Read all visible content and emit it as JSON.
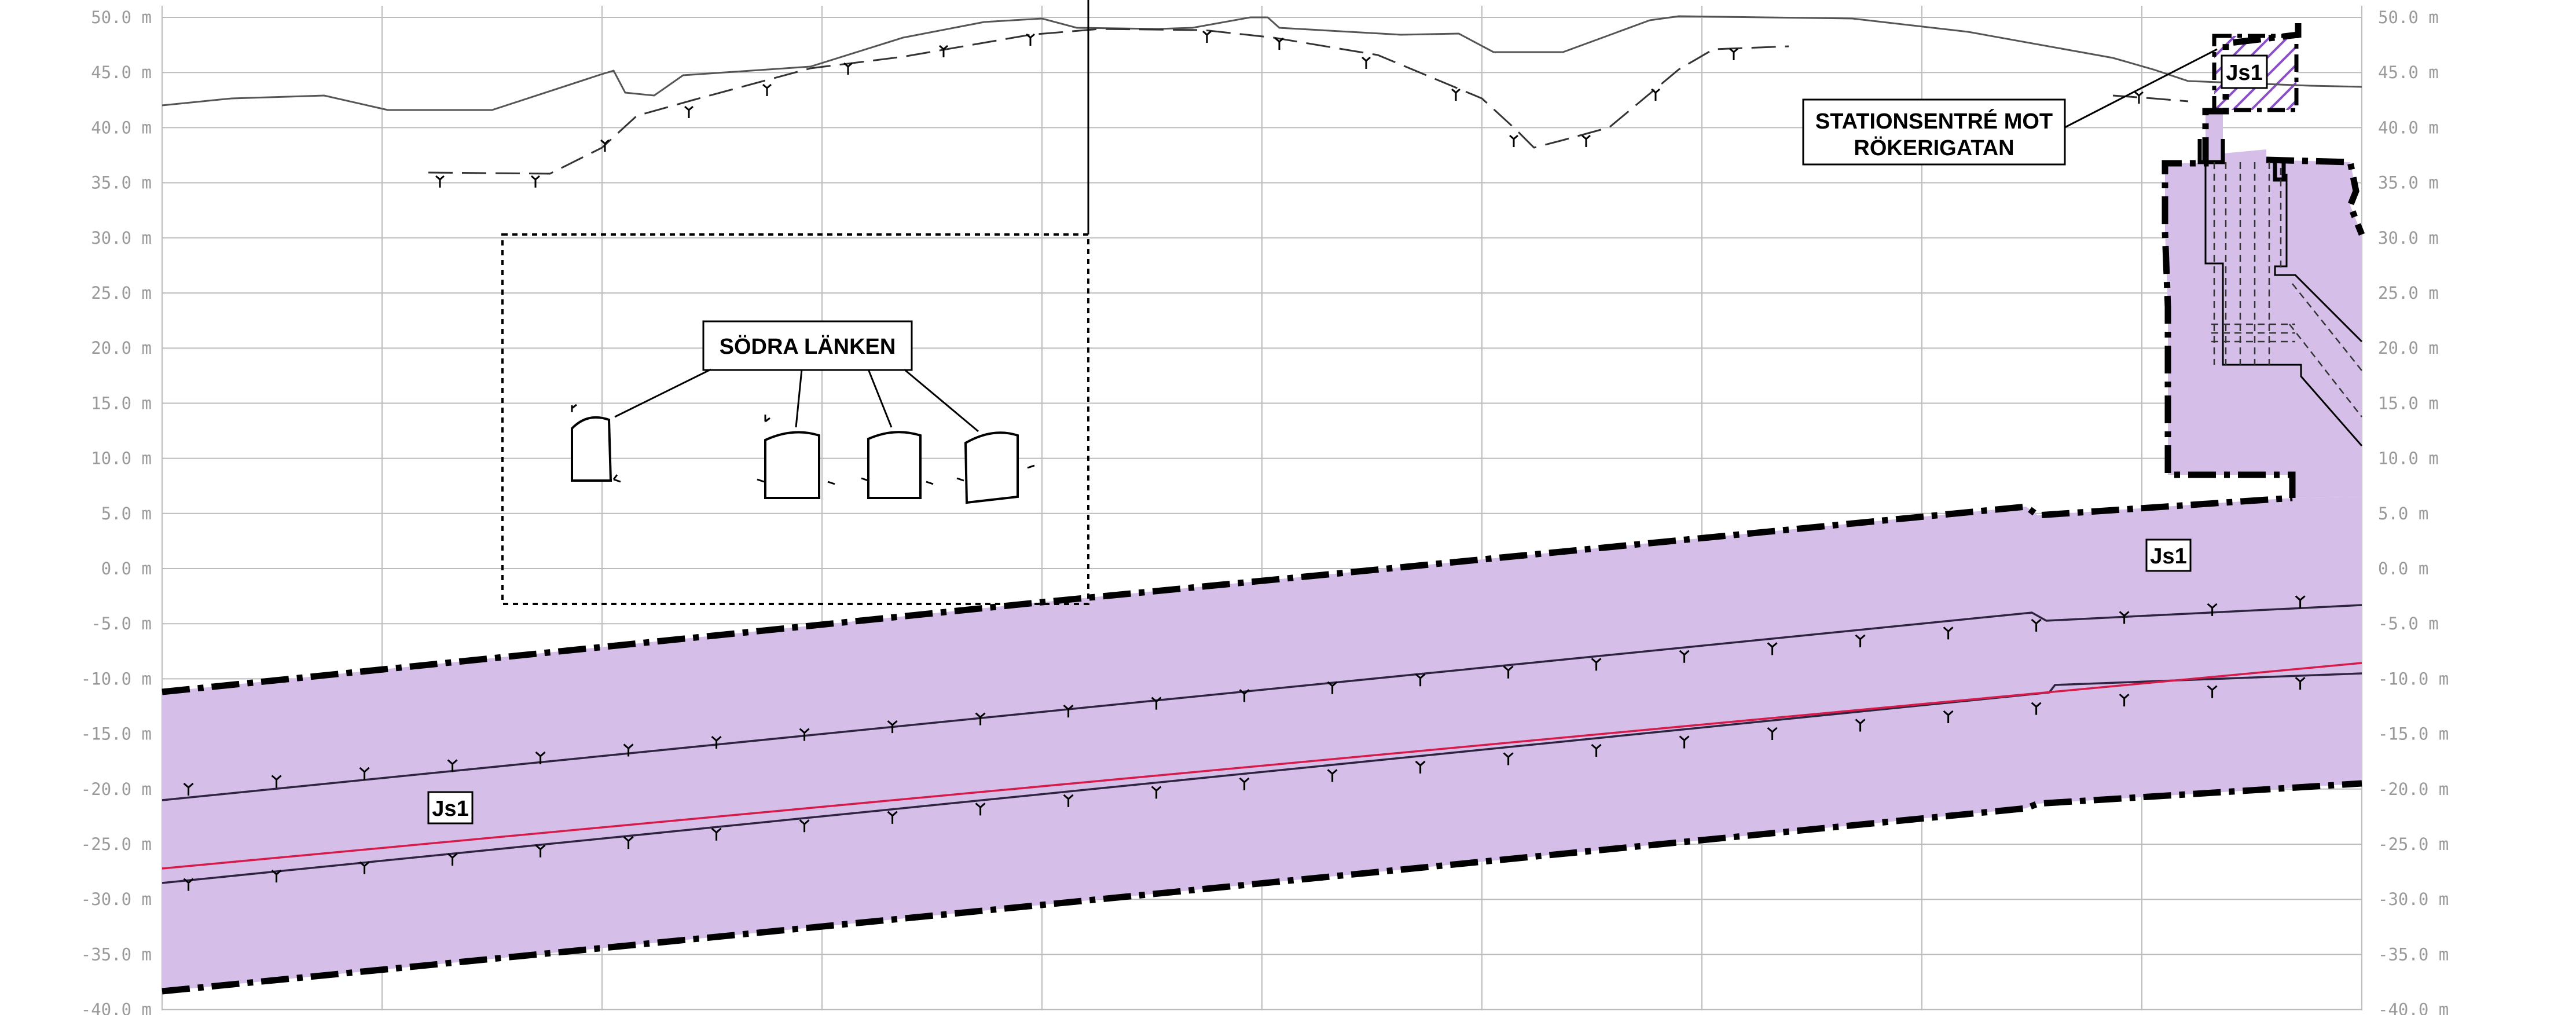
{
  "y_axis": {
    "unit": "m",
    "ticks": [
      "50.0",
      "45.0",
      "40.0",
      "35.0",
      "30.0",
      "25.0",
      "20.0",
      "15.0",
      "10.0",
      "5.0",
      "0.0",
      "-5.0",
      "-10.0",
      "-15.0",
      "-20.0",
      "-25.0",
      "-30.0",
      "-35.0",
      "-40.0"
    ]
  },
  "labels": {
    "sodra_lanken": "SÖDRA LÄNKEN",
    "station_line1": "STATIONSENTRÉ MOT",
    "station_line2": "RÖKERIGATAN",
    "zone_top": "Js1",
    "zone_right": "Js1",
    "zone_left": "Js1"
  },
  "colors": {
    "zone": "#d5bfe9",
    "alignment_line": "#d61a4a",
    "rock_line": "#2e2440"
  }
}
